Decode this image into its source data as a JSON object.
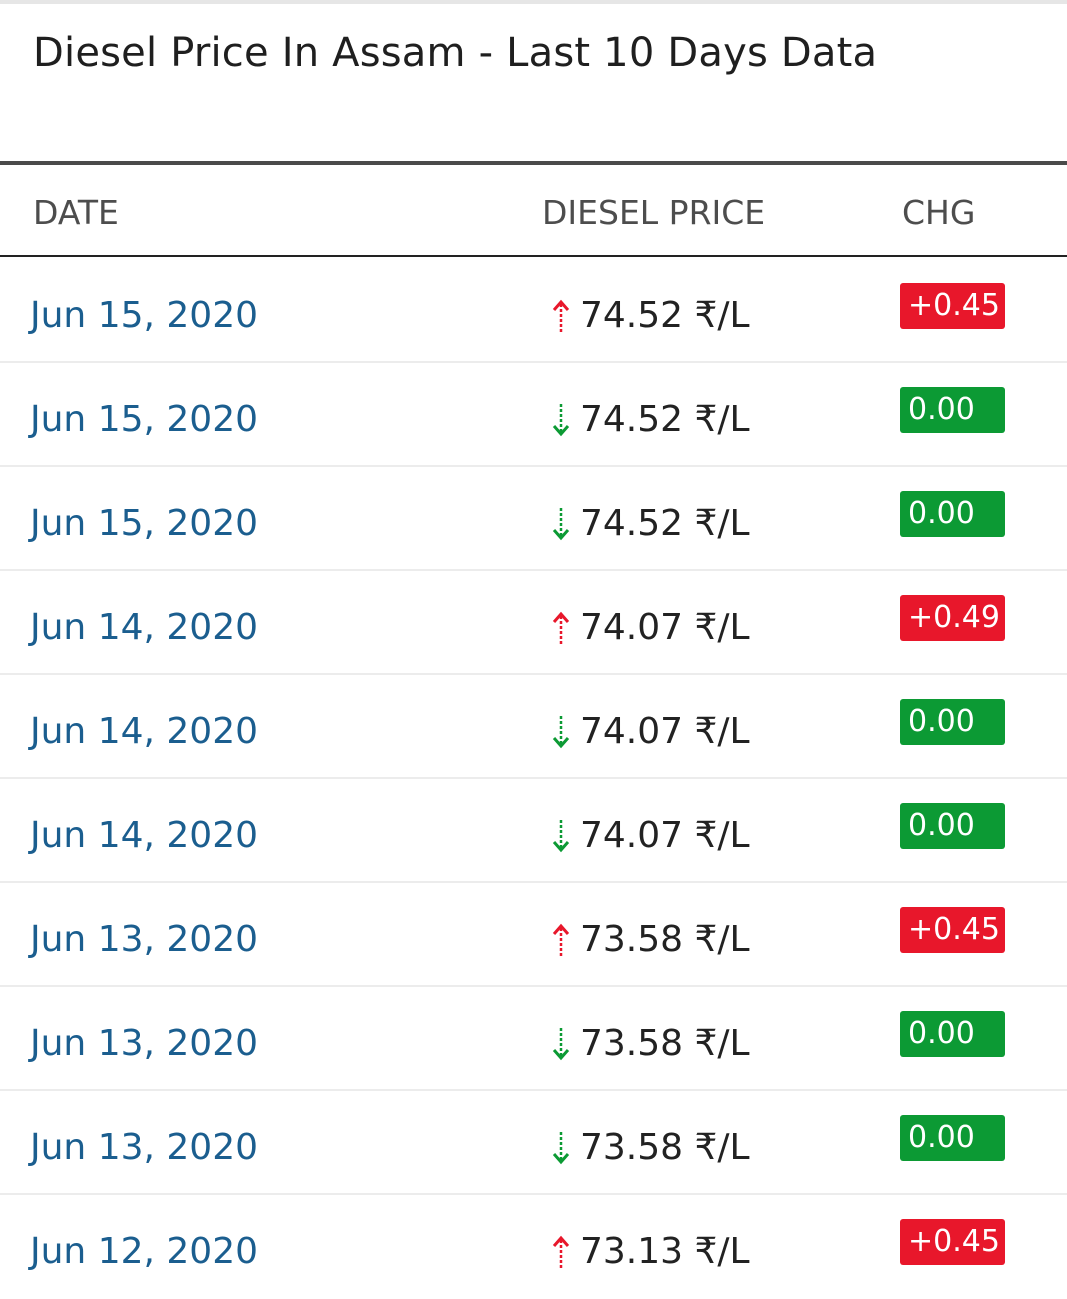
{
  "title": "Diesel Price In Assam - Last 10 Days Data",
  "columns": {
    "date": "DATE",
    "price": "DIESEL PRICE",
    "chg": "CHG"
  },
  "colors": {
    "up": "#e8172b",
    "flat": "#0c9a34",
    "date_text": "#1b5e8f"
  },
  "rows": [
    {
      "date": "Jun 15, 2020",
      "price": "74.52 ₹/L",
      "change": "+0.45",
      "trend": "up"
    },
    {
      "date": "Jun 15, 2020",
      "price": "74.52 ₹/L",
      "change": "0.00",
      "trend": "down"
    },
    {
      "date": "Jun 15, 2020",
      "price": "74.52 ₹/L",
      "change": "0.00",
      "trend": "down"
    },
    {
      "date": "Jun 14, 2020",
      "price": "74.07 ₹/L",
      "change": "+0.49",
      "trend": "up"
    },
    {
      "date": "Jun 14, 2020",
      "price": "74.07 ₹/L",
      "change": "0.00",
      "trend": "down"
    },
    {
      "date": "Jun 14, 2020",
      "price": "74.07 ₹/L",
      "change": "0.00",
      "trend": "down"
    },
    {
      "date": "Jun 13, 2020",
      "price": "73.58 ₹/L",
      "change": "+0.45",
      "trend": "up"
    },
    {
      "date": "Jun 13, 2020",
      "price": "73.58 ₹/L",
      "change": "0.00",
      "trend": "down"
    },
    {
      "date": "Jun 13, 2020",
      "price": "73.58 ₹/L",
      "change": "0.00",
      "trend": "down"
    },
    {
      "date": "Jun 12, 2020",
      "price": "73.13 ₹/L",
      "change": "+0.45",
      "trend": "up"
    }
  ]
}
